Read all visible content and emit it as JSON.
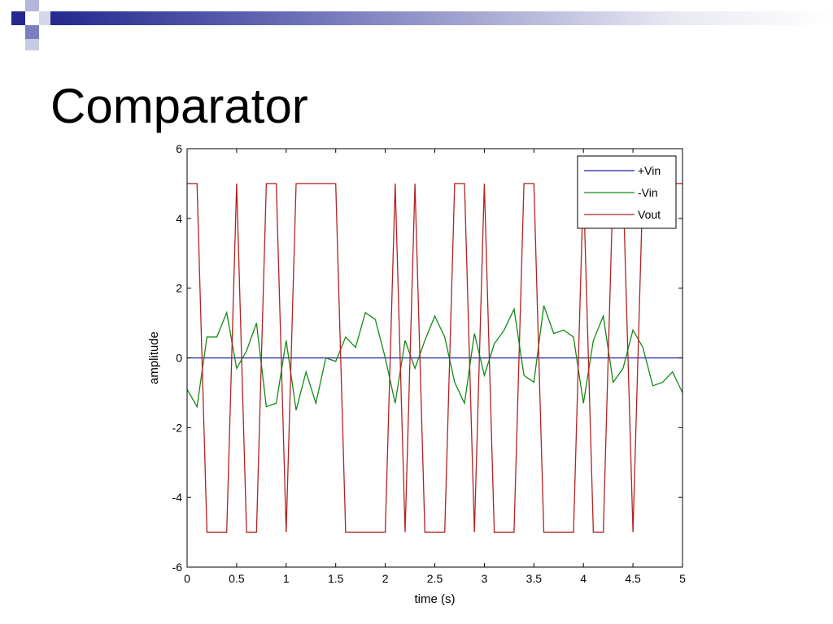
{
  "slide": {
    "title": "Comparator"
  },
  "chart_data": {
    "type": "line",
    "xlabel": "time (s)",
    "ylabel": "amplitude",
    "xlim": [
      0,
      5
    ],
    "ylim": [
      -6,
      6
    ],
    "xticks": [
      0,
      0.5,
      1,
      1.5,
      2,
      2.5,
      3,
      3.5,
      4,
      4.5,
      5
    ],
    "xtick_labels": [
      "0",
      "0.5",
      "1",
      "1.5",
      "2",
      "2.5",
      "3",
      "3.5",
      "4",
      "4.5",
      "5"
    ],
    "yticks": [
      -6,
      -4,
      -2,
      0,
      2,
      4,
      6
    ],
    "ytick_labels": [
      "-6",
      "-4",
      "-2",
      "0",
      "2",
      "4",
      "6"
    ],
    "grid": false,
    "legend_position": "top-right",
    "series": [
      {
        "name": "+Vin",
        "color": "#1a1aa0",
        "x": [
          0,
          5
        ],
        "y": [
          0,
          0
        ]
      },
      {
        "name": "-Vin",
        "color": "#138a13",
        "x": [
          0,
          0.1,
          0.2,
          0.3,
          0.4,
          0.5,
          0.6,
          0.7,
          0.8,
          0.9,
          1.0,
          1.1,
          1.2,
          1.3,
          1.4,
          1.5,
          1.6,
          1.7,
          1.8,
          1.9,
          2.0,
          2.1,
          2.2,
          2.3,
          2.4,
          2.5,
          2.6,
          2.7,
          2.8,
          2.9,
          3.0,
          3.1,
          3.2,
          3.3,
          3.4,
          3.5,
          3.6,
          3.7,
          3.8,
          3.9,
          4.0,
          4.1,
          4.2,
          4.3,
          4.4,
          4.5,
          4.6,
          4.7,
          4.8,
          4.9,
          5.0
        ],
        "y": [
          -0.9,
          -1.4,
          0.6,
          0.6,
          1.3,
          -0.3,
          0.2,
          1.0,
          -1.4,
          -1.3,
          0.5,
          -1.5,
          -0.4,
          -1.3,
          0.0,
          -0.1,
          0.6,
          0.3,
          1.3,
          1.1,
          0.0,
          -1.3,
          0.5,
          -0.3,
          0.5,
          1.2,
          0.6,
          -0.7,
          -1.3,
          0.7,
          -0.5,
          0.4,
          0.8,
          1.4,
          -0.5,
          -0.7,
          1.5,
          0.7,
          0.8,
          0.6,
          -1.3,
          0.5,
          1.2,
          -0.7,
          -0.3,
          0.8,
          0.3,
          -0.8,
          -0.7,
          -0.4,
          -1.0
        ]
      },
      {
        "name": "Vout",
        "color": "#b22222",
        "x": [
          0,
          0.1,
          0.2,
          0.3,
          0.4,
          0.5,
          0.6,
          0.7,
          0.8,
          0.9,
          1.0,
          1.1,
          1.2,
          1.3,
          1.4,
          1.5,
          1.6,
          1.7,
          1.8,
          1.9,
          2.0,
          2.1,
          2.2,
          2.3,
          2.4,
          2.5,
          2.6,
          2.7,
          2.8,
          2.9,
          3.0,
          3.1,
          3.2,
          3.3,
          3.4,
          3.5,
          3.6,
          3.7,
          3.8,
          3.9,
          4.0,
          4.1,
          4.2,
          4.3,
          4.4,
          4.5,
          4.6,
          4.7,
          4.8,
          4.9,
          5.0
        ],
        "y": [
          5,
          5,
          -5,
          -5,
          -5,
          5,
          -5,
          -5,
          5,
          5,
          -5,
          5,
          5,
          5,
          5,
          5,
          -5,
          -5,
          -5,
          -5,
          -5,
          5,
          -5,
          5,
          -5,
          -5,
          -5,
          5,
          5,
          -5,
          5,
          -5,
          -5,
          -5,
          5,
          5,
          -5,
          -5,
          -5,
          -5,
          5,
          -5,
          -5,
          5,
          5,
          -5,
          5,
          5,
          5,
          5,
          5
        ]
      }
    ]
  }
}
